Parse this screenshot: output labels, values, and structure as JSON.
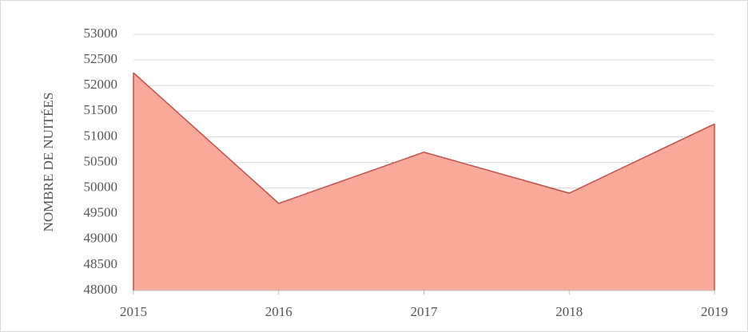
{
  "chart_data": {
    "type": "area",
    "y_axis_label": "NOMBRE DE NUITÉES",
    "x": [
      2015,
      2016,
      2017,
      2018,
      2019
    ],
    "values": [
      52250,
      49700,
      50700,
      49900,
      51250
    ],
    "color": "#f9a99a",
    "line_color": "#c0504d",
    "xlim": [
      2015,
      2019
    ],
    "xticks": [
      2015,
      2016,
      2017,
      2018,
      2019
    ],
    "ylim": [
      48000,
      53000
    ],
    "yticks": [
      48000,
      48500,
      49000,
      49500,
      50000,
      50500,
      51000,
      51500,
      52000,
      52500,
      53000
    ],
    "grid": true
  }
}
